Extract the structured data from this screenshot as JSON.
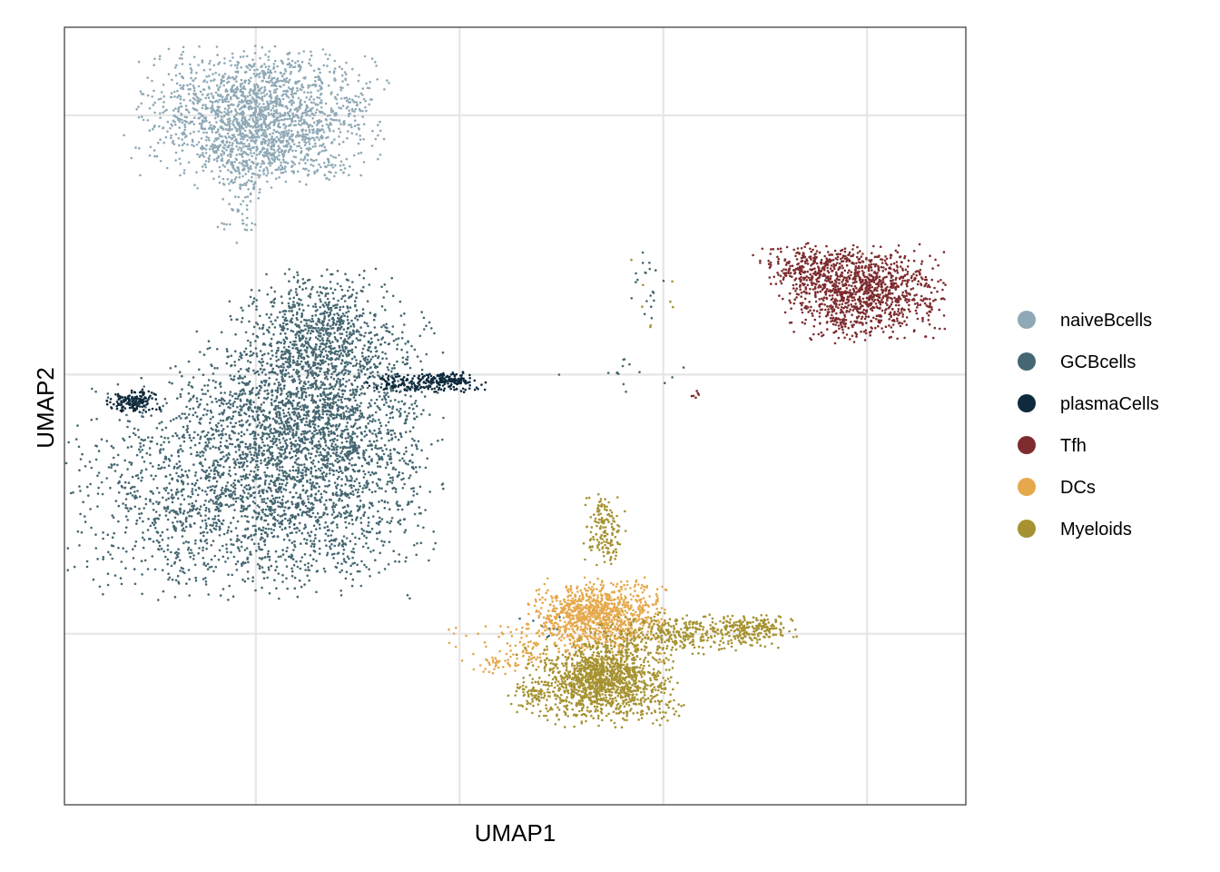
{
  "chart_data": {
    "type": "scatter",
    "title": "",
    "xlabel": "UMAP1",
    "ylabel": "UMAP2",
    "x_tick_labels": [],
    "y_tick_labels": [],
    "xlim": [
      -6.4,
      8.2
    ],
    "ylim": [
      -8.3,
      6.7
    ],
    "grid": true,
    "legend_position": "right",
    "point_size": "small",
    "series": [
      {
        "name": "naiveBcells",
        "color": "#8FA9B6",
        "clusters": [
          {
            "cx": -3.2,
            "cy": 5.1,
            "sx": 0.9,
            "sy": 0.55,
            "n": 1600
          },
          {
            "cx": -3.3,
            "cy": 4.3,
            "sx": 0.5,
            "sy": 0.4,
            "n": 350
          },
          {
            "cx": -3.6,
            "cy": 3.5,
            "sx": 0.15,
            "sy": 0.5,
            "n": 80
          },
          {
            "cx": -2.2,
            "cy": 4.0,
            "sx": 0.25,
            "sy": 0.15,
            "n": 40
          }
        ]
      },
      {
        "name": "GCBcells",
        "color": "#456771",
        "clusters": [
          {
            "cx": -3.5,
            "cy": -2.2,
            "sx": 1.25,
            "sy": 0.95,
            "n": 1900
          },
          {
            "cx": -2.1,
            "cy": -0.9,
            "sx": 0.8,
            "sy": 1.3,
            "n": 1700
          },
          {
            "cx": -2.3,
            "cy": 0.8,
            "sx": 0.5,
            "sy": 0.5,
            "n": 500
          },
          {
            "cx": -3.0,
            "cy": -0.5,
            "sx": 0.8,
            "sy": 0.6,
            "n": 500
          },
          {
            "cx": 3.0,
            "cy": 1.8,
            "sx": 0.15,
            "sy": 0.4,
            "n": 20
          },
          {
            "cx": 2.6,
            "cy": 0.0,
            "sx": 0.5,
            "sy": 0.2,
            "n": 15
          },
          {
            "cx": 1.4,
            "cy": -4.8,
            "sx": 0.3,
            "sy": 0.2,
            "n": 10
          }
        ]
      },
      {
        "name": "plasmaCells",
        "color": "#0E2A3C",
        "clusters": [
          {
            "cx": -5.3,
            "cy": -0.5,
            "sx": 0.2,
            "sy": 0.1,
            "n": 160
          },
          {
            "cx": -0.6,
            "cy": -0.17,
            "sx": 0.45,
            "sy": 0.08,
            "n": 200
          },
          {
            "cx": -0.2,
            "cy": -0.08,
            "sx": 0.2,
            "sy": 0.06,
            "n": 80
          }
        ]
      },
      {
        "name": "Tfh",
        "color": "#7E2C2F",
        "clusters": [
          {
            "cx": 6.5,
            "cy": 1.6,
            "sx": 0.6,
            "sy": 0.4,
            "n": 1100
          },
          {
            "cx": 5.6,
            "cy": 2.1,
            "sx": 0.4,
            "sy": 0.2,
            "n": 200
          },
          {
            "cx": 6.2,
            "cy": 0.9,
            "sx": 0.3,
            "sy": 0.2,
            "n": 40
          },
          {
            "cx": 3.8,
            "cy": -0.4,
            "sx": 0.05,
            "sy": 0.05,
            "n": 6
          }
        ]
      },
      {
        "name": "DCs",
        "color": "#E5A84B",
        "clusters": [
          {
            "cx": 2.2,
            "cy": -4.6,
            "sx": 0.5,
            "sy": 0.3,
            "n": 900
          },
          {
            "cx": 1.6,
            "cy": -5.2,
            "sx": 0.8,
            "sy": 0.25,
            "n": 200
          },
          {
            "cx": 0.6,
            "cy": -5.6,
            "sx": 0.2,
            "sy": 0.08,
            "n": 30
          }
        ]
      },
      {
        "name": "Myeloids",
        "color": "#A69231",
        "clusters": [
          {
            "cx": 2.3,
            "cy": -6.0,
            "sx": 0.6,
            "sy": 0.35,
            "n": 1100
          },
          {
            "cx": 2.4,
            "cy": -5.7,
            "sx": 0.3,
            "sy": 0.3,
            "n": 300
          },
          {
            "cx": 3.6,
            "cy": -5.0,
            "sx": 0.7,
            "sy": 0.18,
            "n": 400
          },
          {
            "cx": 4.8,
            "cy": -4.9,
            "sx": 0.3,
            "sy": 0.12,
            "n": 150
          },
          {
            "cx": 2.35,
            "cy": -3.0,
            "sx": 0.15,
            "sy": 0.3,
            "n": 150
          },
          {
            "cx": 1.2,
            "cy": -6.2,
            "sx": 0.2,
            "sy": 0.1,
            "n": 40
          },
          {
            "cx": 3.2,
            "cy": 1.5,
            "sx": 0.2,
            "sy": 0.4,
            "n": 8
          }
        ]
      }
    ]
  }
}
